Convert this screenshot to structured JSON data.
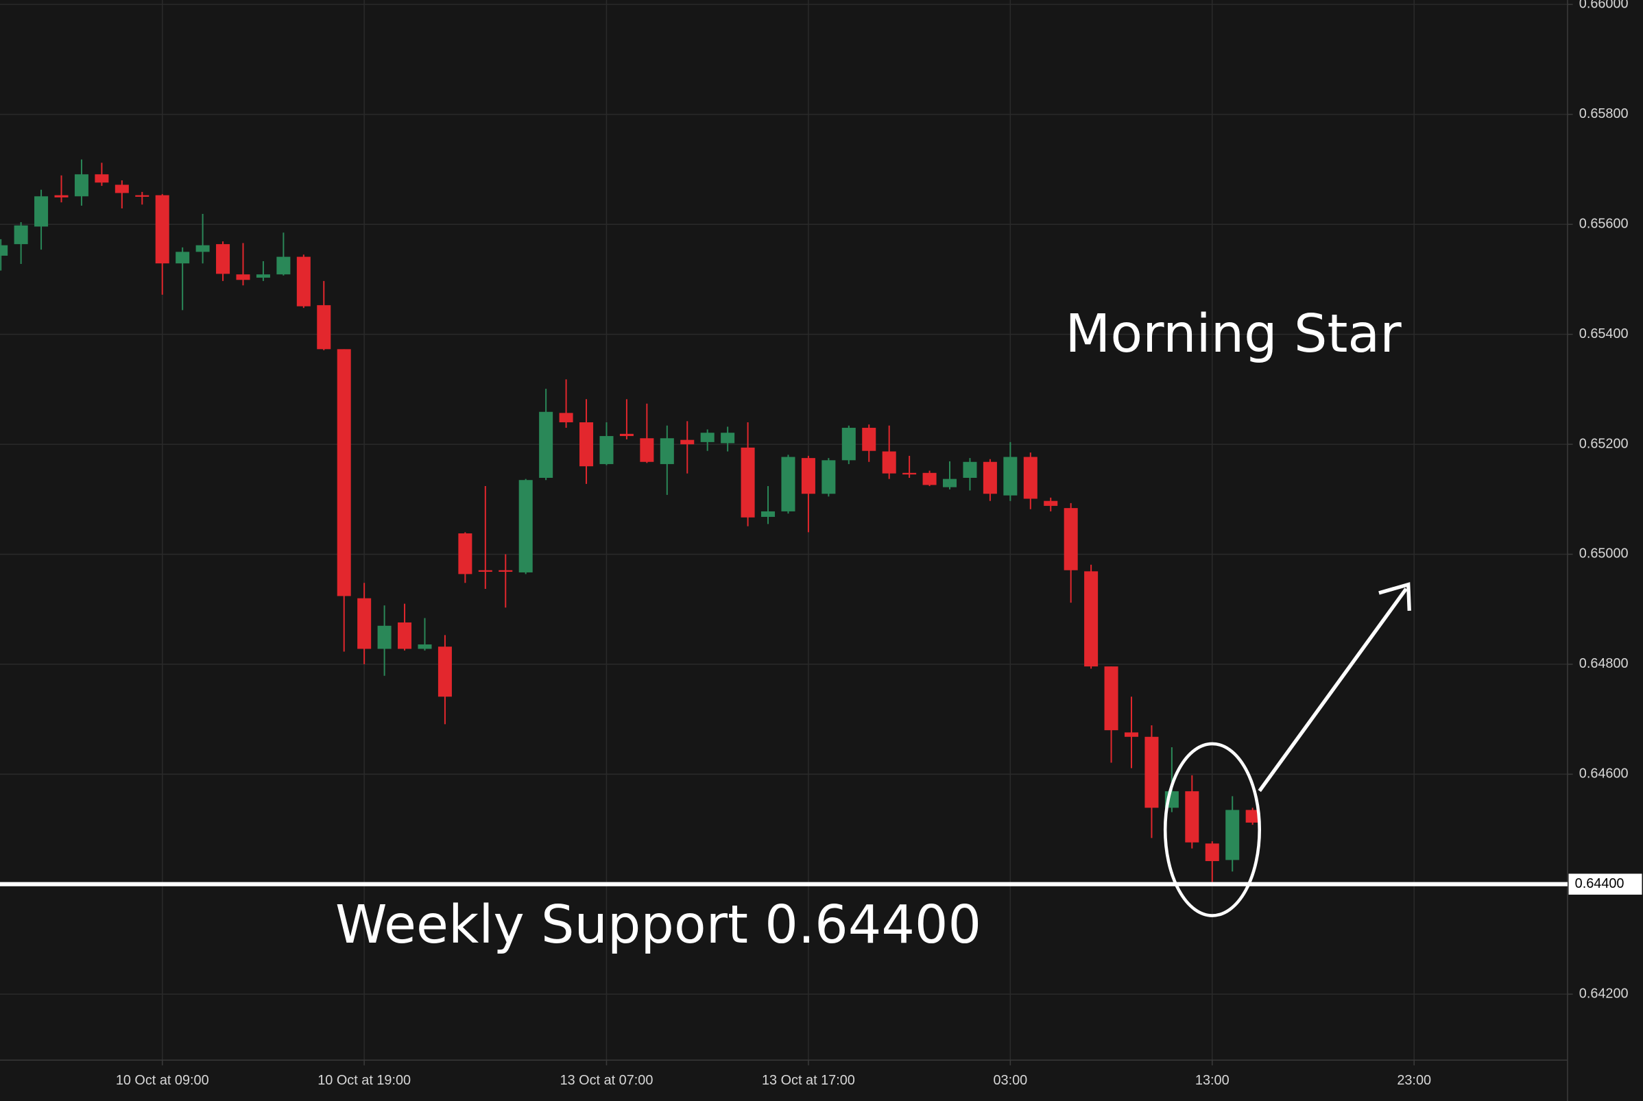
{
  "chart_data": {
    "type": "candlestick",
    "annotations": {
      "pattern": "Morning Star",
      "support_text": "Weekly Support 0.64400"
    },
    "support": {
      "value": 0.644,
      "label": "0.64400"
    },
    "up_color": "#2a8858",
    "down_color": "#e3272d",
    "grid": true,
    "open": [
      0.65543,
      0.65564,
      0.65596,
      0.65653,
      0.65651,
      0.65691,
      0.65672,
      0.65653,
      0.65653,
      0.65529,
      0.6555,
      0.65564,
      0.65509,
      0.65503,
      0.65509,
      0.65541,
      0.65453,
      0.65373,
      0.6492,
      0.64828,
      0.64876,
      0.64828,
      0.64832,
      0.65038,
      0.64971,
      0.64971,
      0.64967,
      0.65139,
      0.65257,
      0.6524,
      0.65164,
      0.65219,
      0.65211,
      0.65164,
      0.65208,
      0.65204,
      0.65202,
      0.65194,
      0.65068,
      0.65078,
      0.65175,
      0.6511,
      0.65171,
      0.6523,
      0.65187,
      0.65148,
      0.65148,
      0.65122,
      0.65139,
      0.65168,
      0.65107,
      0.65177,
      0.65097,
      0.65084,
      0.64969,
      0.64796,
      0.64676,
      0.64668,
      0.64539,
      0.64569,
      0.64474,
      0.64444,
      0.64535
    ],
    "high": [
      0.65573,
      0.65604,
      0.65663,
      0.65689,
      0.65718,
      0.65712,
      0.6568,
      0.65659,
      0.65655,
      0.65558,
      0.65619,
      0.65569,
      0.65566,
      0.65533,
      0.65585,
      0.65545,
      0.65497,
      0.65373,
      0.64948,
      0.64907,
      0.6491,
      0.64884,
      0.64853,
      0.6504,
      0.65124,
      0.65,
      0.65137,
      0.65301,
      0.65318,
      0.65282,
      0.6524,
      0.65282,
      0.65274,
      0.65234,
      0.65242,
      0.65227,
      0.65232,
      0.6524,
      0.65124,
      0.65181,
      0.65179,
      0.65175,
      0.65234,
      0.65236,
      0.65234,
      0.65179,
      0.65152,
      0.65169,
      0.65175,
      0.65173,
      0.65204,
      0.65185,
      0.65103,
      0.65093,
      0.64981,
      0.64796,
      0.64741,
      0.64689,
      0.64649,
      0.64598,
      0.64478,
      0.6456,
      0.64539
    ],
    "low": [
      0.65516,
      0.65528,
      0.65554,
      0.6564,
      0.65634,
      0.6567,
      0.65629,
      0.65636,
      0.65472,
      0.65444,
      0.65529,
      0.65497,
      0.65489,
      0.65497,
      0.65507,
      0.65448,
      0.65371,
      0.64823,
      0.648,
      0.64779,
      0.64825,
      0.64825,
      0.64691,
      0.64948,
      0.64937,
      0.64903,
      0.64964,
      0.65135,
      0.6523,
      0.65128,
      0.65162,
      0.65209,
      0.65166,
      0.65108,
      0.65147,
      0.65188,
      0.65187,
      0.65051,
      0.65055,
      0.65074,
      0.6504,
      0.65105,
      0.65164,
      0.65168,
      0.65137,
      0.65139,
      0.65124,
      0.65118,
      0.65116,
      0.65097,
      0.65097,
      0.65082,
      0.65078,
      0.64912,
      0.64792,
      0.64621,
      0.64611,
      0.64484,
      0.64531,
      0.64465,
      0.64404,
      0.64423,
      0.64508
    ],
    "close": [
      0.65562,
      0.65598,
      0.65651,
      0.65649,
      0.65691,
      0.65676,
      0.65657,
      0.65651,
      0.65529,
      0.6555,
      0.65562,
      0.6551,
      0.65499,
      0.65509,
      0.65541,
      0.65451,
      0.65373,
      0.64924,
      0.64828,
      0.6487,
      0.64828,
      0.64836,
      0.64741,
      0.64964,
      0.64969,
      0.64969,
      0.65135,
      0.65259,
      0.6524,
      0.6516,
      0.65215,
      0.65215,
      0.65168,
      0.65211,
      0.652,
      0.65221,
      0.65221,
      0.65067,
      0.65078,
      0.65177,
      0.6511,
      0.65171,
      0.6523,
      0.65188,
      0.65147,
      0.65147,
      0.65126,
      0.65137,
      0.65168,
      0.6511,
      0.65177,
      0.65101,
      0.65088,
      0.64971,
      0.64796,
      0.6468,
      0.64668,
      0.64539,
      0.64569,
      0.64476,
      0.64442,
      0.64535,
      0.64512
    ],
    "xlim": [
      -0.04,
      77.6
    ],
    "xticks": [
      {
        "value": 8,
        "label": "10 Oct at 09:00"
      },
      {
        "value": 18,
        "label": "10 Oct at 19:00"
      },
      {
        "value": 30,
        "label": "13 Oct at 07:00"
      },
      {
        "value": 40,
        "label": "13 Oct at 17:00"
      },
      {
        "value": 50,
        "label": "03:00"
      },
      {
        "value": 60,
        "label": "13:00"
      },
      {
        "value": 70,
        "label": "23:00"
      }
    ],
    "ylim": [
      0.6408,
      0.66008
    ],
    "yticks": [
      {
        "value": 0.66,
        "label": "0.66000"
      },
      {
        "value": 0.658,
        "label": "0.65800"
      },
      {
        "value": 0.656,
        "label": "0.65600"
      },
      {
        "value": 0.654,
        "label": "0.65400"
      },
      {
        "value": 0.652,
        "label": "0.65200"
      },
      {
        "value": 0.65,
        "label": "0.65000"
      },
      {
        "value": 0.648,
        "label": "0.64800"
      },
      {
        "value": 0.646,
        "label": "0.64600"
      },
      {
        "value": 0.642,
        "label": "0.64200"
      }
    ]
  }
}
